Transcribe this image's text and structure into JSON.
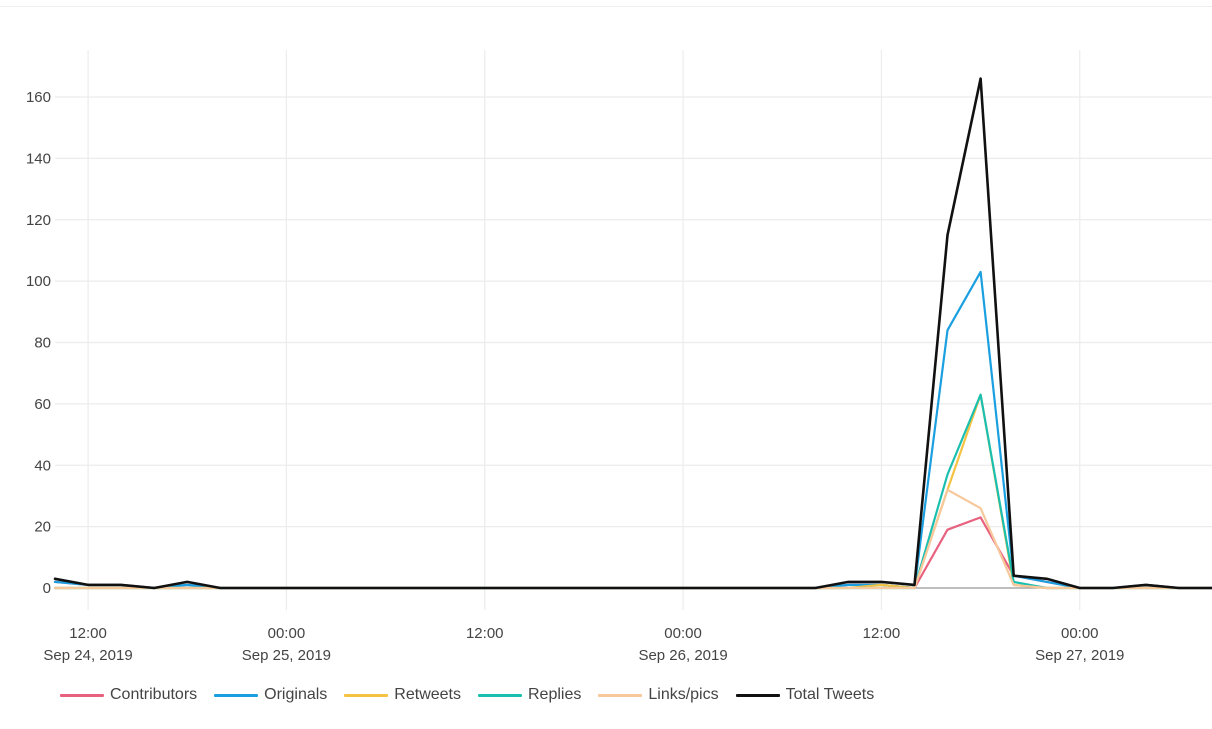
{
  "chart_data": {
    "type": "line",
    "title": "",
    "xlabel": "",
    "ylabel": "",
    "x": [
      "2019-09-24 10:00",
      "2019-09-24 12:00",
      "2019-09-24 14:00",
      "2019-09-24 16:00",
      "2019-09-24 18:00",
      "2019-09-24 20:00",
      "2019-09-24 22:00",
      "2019-09-25 00:00",
      "2019-09-25 02:00",
      "2019-09-25 04:00",
      "2019-09-25 06:00",
      "2019-09-25 08:00",
      "2019-09-25 10:00",
      "2019-09-25 12:00",
      "2019-09-25 14:00",
      "2019-09-25 16:00",
      "2019-09-25 18:00",
      "2019-09-25 20:00",
      "2019-09-25 22:00",
      "2019-09-26 00:00",
      "2019-09-26 02:00",
      "2019-09-26 04:00",
      "2019-09-26 06:00",
      "2019-09-26 08:00",
      "2019-09-26 10:00",
      "2019-09-26 12:00",
      "2019-09-26 14:00",
      "2019-09-26 16:00",
      "2019-09-26 18:00",
      "2019-09-26 20:00",
      "2019-09-26 22:00",
      "2019-09-27 00:00",
      "2019-09-27 02:00",
      "2019-09-27 04:00",
      "2019-09-27 06:00",
      "2019-09-27 08:00"
    ],
    "x_ticks": [
      {
        "at": "2019-09-24 12:00",
        "time": "12:00",
        "date": "Sep 24, 2019"
      },
      {
        "at": "2019-09-25 00:00",
        "time": "00:00",
        "date": "Sep 25, 2019"
      },
      {
        "at": "2019-09-25 12:00",
        "time": "12:00",
        "date": ""
      },
      {
        "at": "2019-09-26 00:00",
        "time": "00:00",
        "date": "Sep 26, 2019"
      },
      {
        "at": "2019-09-26 12:00",
        "time": "12:00",
        "date": ""
      },
      {
        "at": "2019-09-27 00:00",
        "time": "00:00",
        "date": "Sep 27, 2019"
      }
    ],
    "x_range": [
      "2019-09-24 10:00",
      "2019-09-27 08:00"
    ],
    "ylim": [
      -8,
      172
    ],
    "yticks": [
      0,
      20,
      40,
      60,
      80,
      100,
      120,
      140,
      160
    ],
    "grid": true,
    "legend": "bottom-left",
    "series": [
      {
        "name": "Contributors",
        "color": "#e8627f",
        "values": [
          2,
          1,
          1,
          0,
          1,
          0,
          0,
          0,
          0,
          0,
          0,
          0,
          0,
          0,
          0,
          0,
          0,
          0,
          0,
          0,
          0,
          0,
          0,
          0,
          1,
          1,
          0,
          19,
          23,
          4,
          2,
          0,
          0,
          1,
          0,
          0
        ]
      },
      {
        "name": "Originals",
        "color": "#1a9fe0",
        "values": [
          2,
          1,
          1,
          0,
          1,
          0,
          0,
          0,
          0,
          0,
          0,
          0,
          0,
          0,
          0,
          0,
          0,
          0,
          0,
          0,
          0,
          0,
          0,
          0,
          1,
          1,
          0,
          84,
          103,
          4,
          2,
          0,
          0,
          1,
          0,
          0
        ]
      },
      {
        "name": "Retweets",
        "color": "#f5c342",
        "values": [
          0,
          0,
          0,
          0,
          0,
          0,
          0,
          0,
          0,
          0,
          0,
          0,
          0,
          0,
          0,
          0,
          0,
          0,
          0,
          0,
          0,
          0,
          0,
          0,
          0,
          1,
          0,
          32,
          63,
          1,
          0,
          0,
          0,
          0,
          0,
          0
        ]
      },
      {
        "name": "Replies",
        "color": "#1bbfb0",
        "values": [
          0,
          0,
          0,
          0,
          0,
          0,
          0,
          0,
          0,
          0,
          0,
          0,
          0,
          0,
          0,
          0,
          0,
          0,
          0,
          0,
          0,
          0,
          0,
          0,
          0,
          0,
          0,
          37,
          63,
          2,
          0,
          0,
          0,
          0,
          0,
          0
        ]
      },
      {
        "name": "Links/pics",
        "color": "#f7c89b",
        "values": [
          0,
          0,
          0,
          0,
          0,
          0,
          0,
          0,
          0,
          0,
          0,
          0,
          0,
          0,
          0,
          0,
          0,
          0,
          0,
          0,
          0,
          0,
          0,
          0,
          0,
          0,
          0,
          32,
          26,
          1,
          0,
          0,
          0,
          0,
          0,
          0
        ]
      },
      {
        "name": "Total Tweets",
        "color": "#111111",
        "values": [
          3,
          1,
          1,
          0,
          2,
          0,
          0,
          0,
          0,
          0,
          0,
          0,
          0,
          0,
          0,
          0,
          0,
          0,
          0,
          0,
          0,
          0,
          0,
          0,
          2,
          2,
          1,
          115,
          166,
          4,
          3,
          0,
          0,
          1,
          0,
          0
        ]
      }
    ]
  }
}
